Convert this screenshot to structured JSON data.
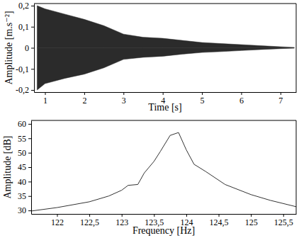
{
  "chart_data": [
    {
      "type": "area",
      "x_label": "Time [s]",
      "y_label": "Amplitude [m.s⁻²]",
      "x": [
        0.8,
        1.0,
        1.5,
        2.0,
        2.5,
        3.0,
        3.5,
        4.0,
        4.5,
        5.0,
        5.5,
        6.0,
        6.5,
        7.0,
        7.35
      ],
      "series": [
        {
          "color": "#2b2b2b",
          "values": [
            0.2,
            0.185,
            0.16,
            0.135,
            0.105,
            0.065,
            0.05,
            0.045,
            0.035,
            0.025,
            0.02,
            0.015,
            0.01,
            0.005,
            0.002
          ]
        },
        {
          "color": "#2b2b2b",
          "values": [
            -0.2,
            -0.17,
            -0.145,
            -0.125,
            -0.095,
            -0.055,
            -0.045,
            -0.04,
            -0.03,
            -0.022,
            -0.018,
            -0.013,
            -0.008,
            -0.004,
            -0.002
          ]
        }
      ],
      "xlim": [
        0.72,
        7.4
      ],
      "xticks": [
        1,
        2,
        3,
        4,
        5,
        6,
        7
      ],
      "ylim": [
        -0.21,
        0.21
      ],
      "yticks": [
        {
          "value": -0.2,
          "label": "-0,2"
        },
        {
          "value": -0.1,
          "label": "-0,1"
        },
        0,
        {
          "value": 0.1,
          "label": "0,1"
        },
        {
          "value": 0.2,
          "label": "0,2"
        }
      ],
      "grid": false
    },
    {
      "type": "line",
      "x_label": "Frequency [Hz]",
      "y_label": "Amplitude [dB]",
      "x": [
        121.6,
        122.0,
        122.5,
        122.8,
        123.0,
        123.1,
        123.25,
        123.35,
        123.5,
        123.6,
        123.75,
        123.88,
        124.0,
        124.12,
        124.3,
        124.6,
        125.0,
        125.3,
        125.7
      ],
      "values": [
        29.8,
        31,
        33,
        35,
        37,
        38.7,
        39,
        43,
        47,
        50.5,
        56,
        57,
        51,
        46,
        43.5,
        39,
        35.5,
        33.5,
        31.3
      ],
      "color": "#333333",
      "xlim": [
        121.6,
        125.7
      ],
      "xticks": [
        122,
        {
          "value": 122.5,
          "label": "122,5"
        },
        123,
        {
          "value": 123.5,
          "label": "123,5"
        },
        124,
        {
          "value": 124.5,
          "label": "124,5"
        },
        125,
        {
          "value": 125.5,
          "label": "125,5"
        }
      ],
      "ylim": [
        28.8,
        61.2
      ],
      "yticks": [
        30,
        35,
        40,
        45,
        50,
        55,
        60
      ],
      "grid": false
    }
  ]
}
